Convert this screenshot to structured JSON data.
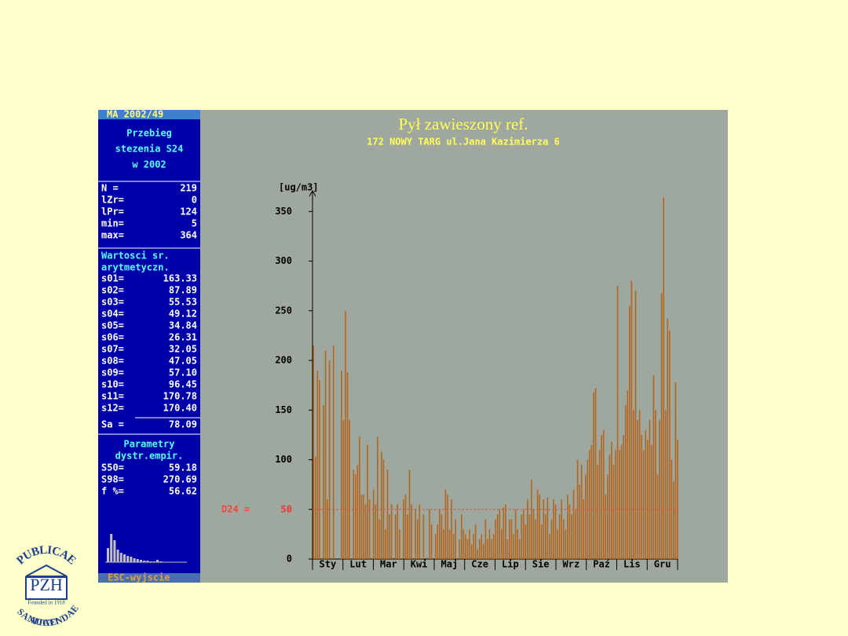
{
  "chart_data": {
    "type": "bar",
    "title": "Pył zawieszony ref.",
    "subtitle": "172 NOWY TARG ul.Jana Kazimierza 6",
    "y_label": "[ug/m3]",
    "categories": [
      "Sty",
      "Lut",
      "Mar",
      "Kwi",
      "Maj",
      "Cze",
      "Lip",
      "Sie",
      "Wrz",
      "Paź",
      "Lis",
      "Gru"
    ],
    "x": [
      1,
      3,
      5,
      7,
      9,
      11,
      13,
      15,
      17,
      19,
      21,
      23,
      25,
      27,
      29,
      31,
      33,
      35,
      37,
      39,
      41,
      43,
      45,
      47,
      49,
      51,
      53,
      55,
      57,
      59,
      61,
      63,
      65,
      67,
      69,
      71,
      73,
      75,
      77,
      79,
      81,
      83,
      85,
      87,
      89,
      91,
      93,
      95,
      97,
      99,
      101,
      103,
      105,
      107,
      109,
      111,
      113,
      115,
      117,
      119,
      121,
      123,
      125,
      127,
      129,
      131,
      133,
      135,
      137,
      139,
      141,
      143,
      145,
      147,
      149,
      151,
      153,
      155,
      157,
      159,
      161,
      163,
      165,
      167,
      169,
      171,
      173,
      175,
      177,
      179,
      181,
      183,
      185,
      187,
      189,
      191,
      193,
      195,
      197,
      199,
      201,
      203,
      205,
      207,
      209,
      211,
      213,
      215,
      217,
      219,
      221,
      223,
      225,
      227,
      229,
      231,
      233,
      235,
      237,
      239,
      241,
      243,
      245,
      247,
      249,
      251,
      253,
      255,
      257,
      259,
      261,
      263,
      265,
      267,
      269,
      271,
      273,
      275,
      277,
      279,
      281,
      283,
      285,
      287,
      289,
      291,
      293,
      295,
      297,
      299,
      301,
      303,
      305,
      307,
      309,
      311,
      313,
      315,
      317,
      319,
      321,
      323,
      325,
      327,
      329,
      331,
      333,
      335,
      337,
      339,
      341,
      343,
      345,
      347,
      349,
      351,
      353,
      355,
      357,
      359,
      361,
      363,
      365
    ],
    "values": [
      215,
      103,
      190,
      180,
      null,
      155,
      210,
      60,
      200,
      null,
      215,
      null,
      null,
      null,
      190,
      140,
      250,
      188,
      140,
      null,
      90,
      85,
      95,
      123,
      65,
      65,
      55,
      115,
      60,
      null,
      70,
      55,
      123,
      40,
      108,
      100,
      30,
      90,
      45,
      55,
      null,
      45,
      55,
      30,
      null,
      60,
      65,
      45,
      90,
      55,
      null,
      50,
      40,
      55,
      null,
      45,
      null,
      null,
      50,
      35,
      null,
      25,
      35,
      50,
      45,
      30,
      70,
      65,
      30,
      60,
      25,
      40,
      null,
      20,
      45,
      30,
      25,
      20,
      30,
      15,
      25,
      35,
      10,
      20,
      25,
      15,
      40,
      20,
      30,
      20,
      25,
      40,
      45,
      50,
      30,
      52,
      55,
      20,
      40,
      40,
      25,
      50,
      30,
      20,
      45,
      50,
      35,
      60,
      45,
      80,
      50,
      40,
      70,
      65,
      35,
      60,
      45,
      62,
      25,
      40,
      60,
      55,
      30,
      45,
      60,
      40,
      30,
      65,
      55,
      45,
      70,
      50,
      100,
      75,
      95,
      60,
      85,
      100,
      110,
      115,
      168,
      172,
      95,
      110,
      125,
      130,
      65,
      85,
      105,
      118,
      95,
      110,
      275,
      110,
      115,
      125,
      155,
      170,
      255,
      280,
      150,
      270,
      140,
      150,
      125,
      110,
      130,
      120,
      140,
      115,
      185,
      150,
      85,
      140,
      268,
      364,
      150,
      242,
      230,
      100,
      78,
      178,
      120
    ],
    "color": "#b5651d",
    "xlim": [
      0,
      365
    ],
    "ylim": [
      0,
      370
    ],
    "yticks": [
      0,
      50,
      100,
      150,
      200,
      250,
      300,
      350
    ],
    "threshold": {
      "label": "D24 =",
      "value": 50,
      "color": "#ff4040"
    }
  },
  "sidebar": {
    "header": "MA 2002/49",
    "title": [
      "Przebieg",
      "stezenia S24",
      "w 2002"
    ],
    "counts": [
      [
        "N =",
        "219"
      ],
      [
        "lZr=",
        "0"
      ],
      [
        "lPr=",
        "124"
      ],
      [
        "min=",
        "5"
      ],
      [
        "max=",
        "364"
      ]
    ],
    "means_title": [
      "Wartosci sr.",
      "arytmetyczn."
    ],
    "means": [
      [
        "s01=",
        "163.33"
      ],
      [
        "s02=",
        "87.89"
      ],
      [
        "s03=",
        "55.53"
      ],
      [
        "s04=",
        "49.12"
      ],
      [
        "s05=",
        "34.84"
      ],
      [
        "s06=",
        "26.31"
      ],
      [
        "s07=",
        "32.05"
      ],
      [
        "s08=",
        "47.05"
      ],
      [
        "s09=",
        "57.10"
      ],
      [
        "s10=",
        "96.45"
      ],
      [
        "s11=",
        "170.78"
      ],
      [
        "s12=",
        "170.40"
      ]
    ],
    "annual": [
      "Sa =",
      "78.09"
    ],
    "params_title": [
      "Parametry",
      "dystr.empir."
    ],
    "params": [
      [
        "S50=",
        "59.18"
      ],
      [
        "S98=",
        "270.69"
      ],
      [
        "f %=",
        "56.62"
      ]
    ],
    "histogram": [
      18,
      36,
      28,
      16,
      12,
      10,
      8,
      7,
      5,
      4,
      3,
      2,
      2,
      1,
      1,
      3,
      1
    ],
    "footer": "ESC-wyjscie"
  },
  "logo": {
    "top": "PUBLICAE",
    "right": "AUGENDAE",
    "left": "SANITATI",
    "bottom": "SANITATI",
    "name": "PZH",
    "founded": "Founded in 1918"
  }
}
